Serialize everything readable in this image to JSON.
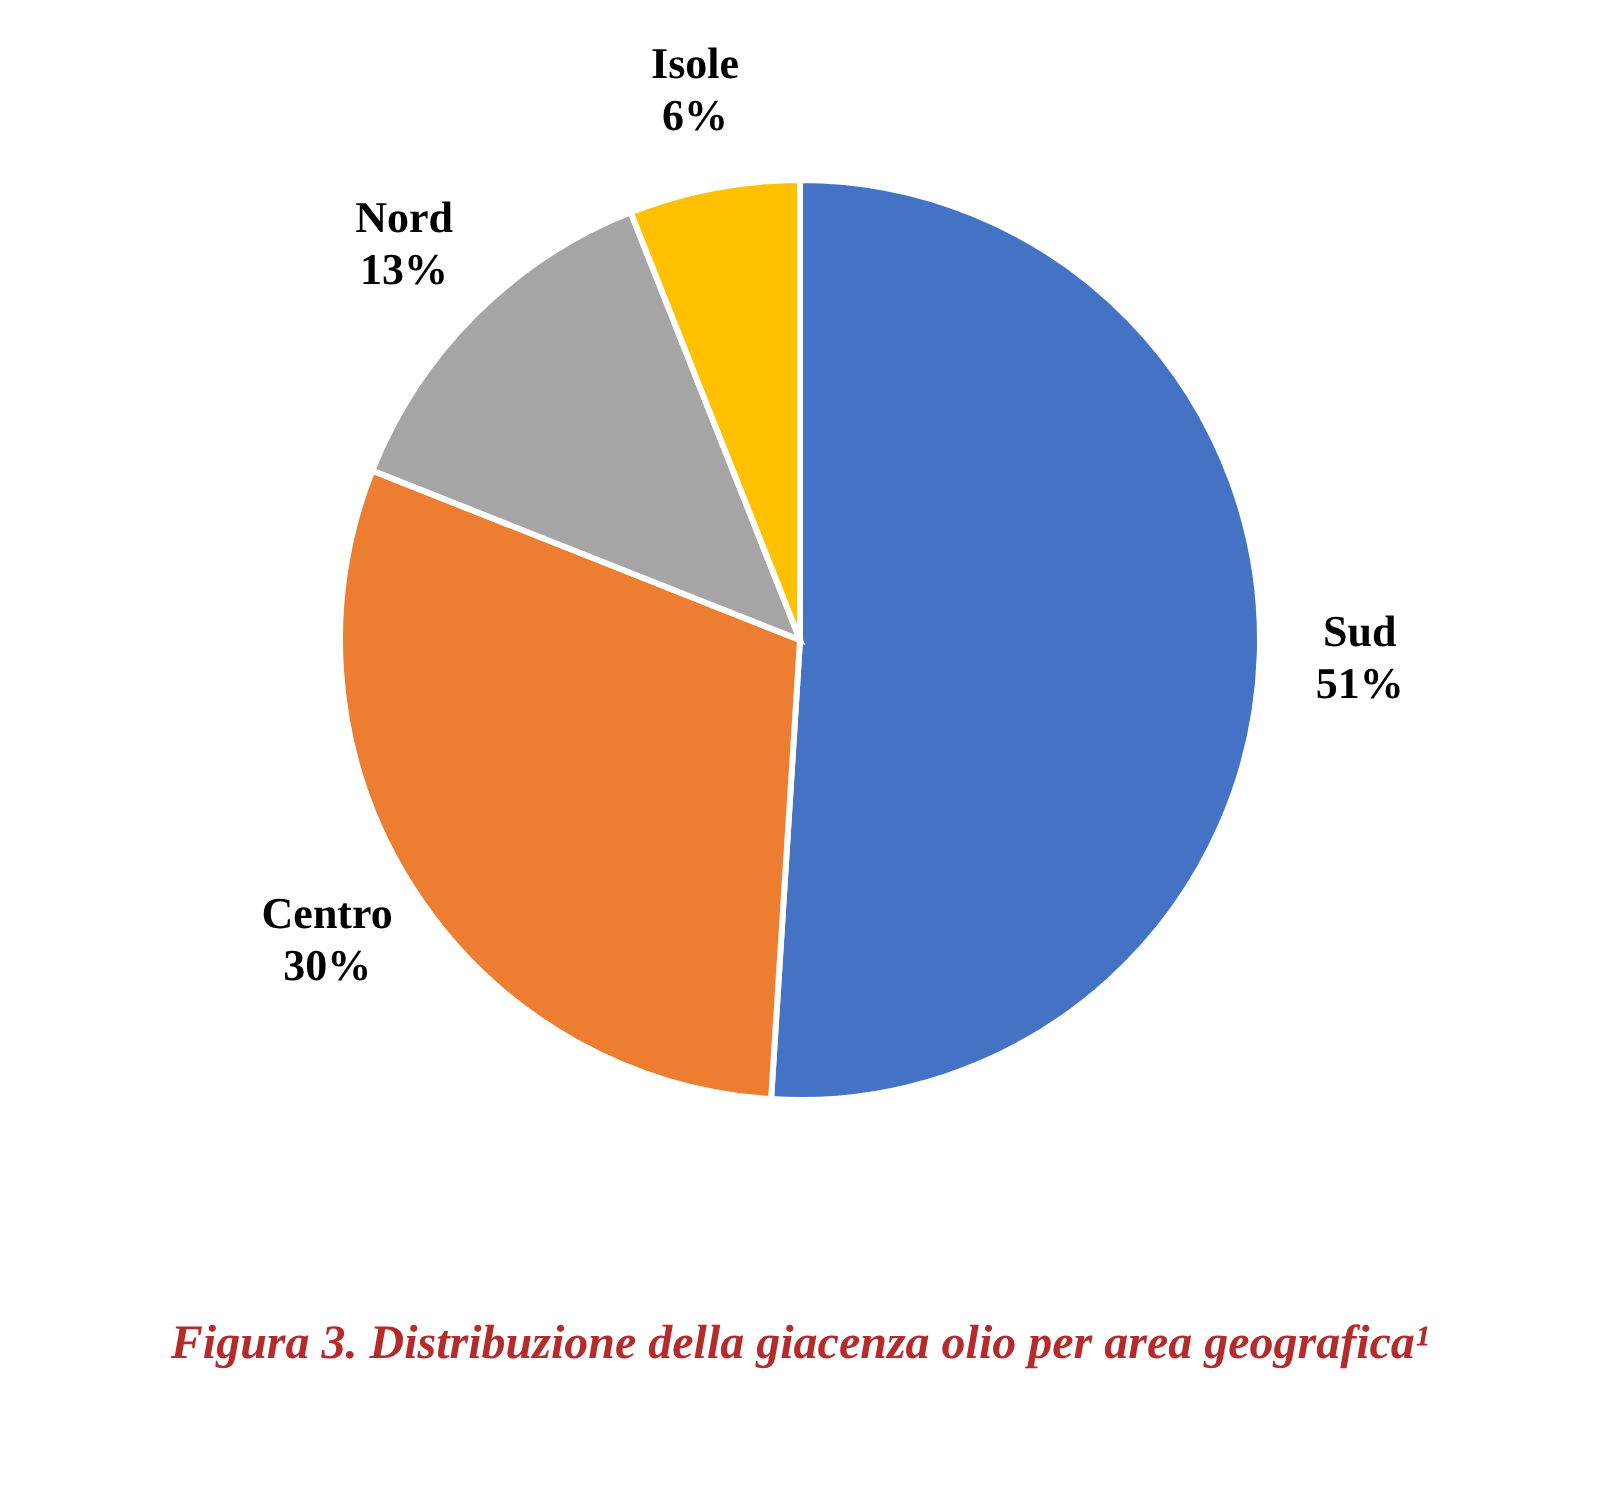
{
  "chart_data": {
    "type": "pie",
    "title": "Figura 3. Distribuzione della giacenza olio per area geografica¹",
    "categories": [
      "Sud",
      "Centro",
      "Nord",
      "Isole"
    ],
    "values": [
      51,
      30,
      13,
      6
    ],
    "value_labels": [
      "51%",
      "30%",
      "13%",
      "6%"
    ],
    "colors": [
      "#4472c4",
      "#ed7d31",
      "#a5a5a5",
      "#ffc000"
    ],
    "legend": false
  }
}
